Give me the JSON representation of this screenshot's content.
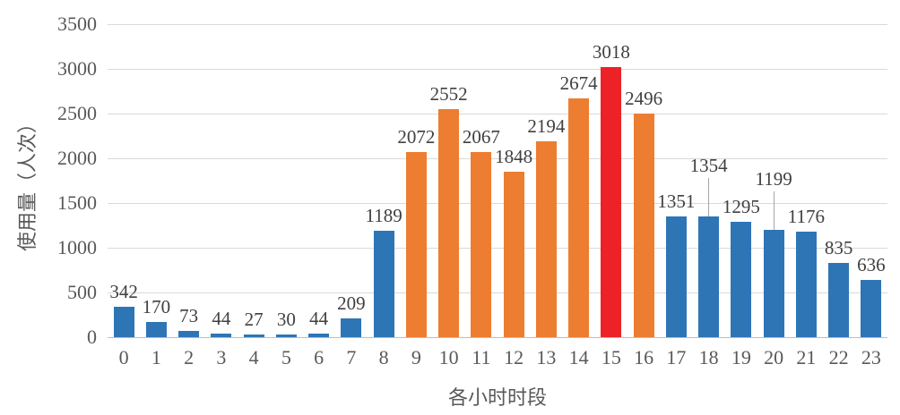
{
  "chart_data": {
    "type": "bar",
    "title": "",
    "xlabel": "各小时时段",
    "ylabel": "使用量（人次）",
    "categories": [
      "0",
      "1",
      "2",
      "3",
      "4",
      "5",
      "6",
      "7",
      "8",
      "9",
      "10",
      "11",
      "12",
      "13",
      "14",
      "15",
      "16",
      "17",
      "18",
      "19",
      "20",
      "21",
      "22",
      "23"
    ],
    "values": [
      342,
      170,
      73,
      44,
      27,
      30,
      44,
      209,
      1189,
      2072,
      2552,
      2067,
      1848,
      2194,
      2674,
      3018,
      2496,
      1351,
      1354,
      1295,
      1199,
      1176,
      835,
      636
    ],
    "bar_colors": [
      "#2e75b6",
      "#2e75b6",
      "#2e75b6",
      "#2e75b6",
      "#2e75b6",
      "#2e75b6",
      "#2e75b6",
      "#2e75b6",
      "#2e75b6",
      "#ed7d31",
      "#ed7d31",
      "#ed7d31",
      "#ed7d31",
      "#ed7d31",
      "#ed7d31",
      "#ec2227",
      "#ed7d31",
      "#2e75b6",
      "#2e75b6",
      "#2e75b6",
      "#2e75b6",
      "#2e75b6",
      "#2e75b6",
      "#2e75b6"
    ],
    "data_labels_visible": true,
    "leader_line_bars": [
      18,
      20
    ],
    "ylim": [
      0,
      3500
    ],
    "yticks": [
      0,
      500,
      1000,
      1500,
      2000,
      2500,
      3000,
      3500
    ],
    "grid": true,
    "legend": "none"
  },
  "colors": {
    "gridline": "#d9d9d9",
    "axis_line": "#bfbfbf",
    "tick_text": "#595959",
    "label_text": "#404040",
    "background": "#ffffff",
    "blue_series": "#2e75b6",
    "orange_series": "#ed7d31",
    "red_highlight": "#ec2227"
  }
}
